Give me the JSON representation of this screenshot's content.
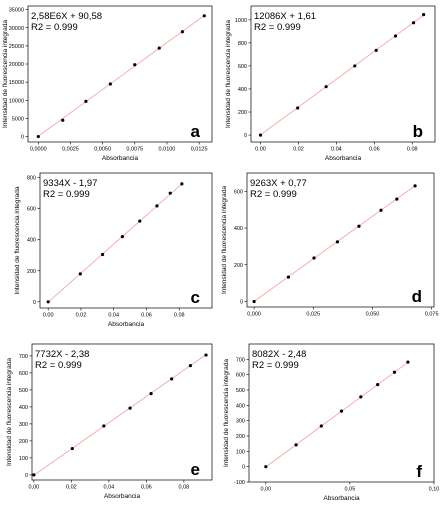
{
  "chart_data": [
    {
      "type": "scatter",
      "panel": "a",
      "equation": "2,58E6X + 90,58",
      "r2": "R2 = 0.999",
      "xlabel": "Absorbancia",
      "ylabel": "Intensidad de fluorescencia integrada",
      "xlim": [
        -0.0008,
        0.0135
      ],
      "ylim": [
        -1500,
        36000
      ],
      "xticks": [
        0.0,
        0.0025,
        0.005,
        0.0075,
        0.01,
        0.0125
      ],
      "xtick_labels": [
        "0,0000",
        "0,0025",
        "0,0050",
        "0,0075",
        "0,0100",
        "0,0125"
      ],
      "yticks": [
        0,
        5000,
        10000,
        15000,
        20000,
        25000,
        30000,
        35000
      ],
      "ytick_labels": [
        "0",
        "5000",
        "10000",
        "15000",
        "20000",
        "25000",
        "30000",
        "35000"
      ],
      "points": {
        "x": [
          0.0,
          0.0019,
          0.0037,
          0.0056,
          0.0075,
          0.0094,
          0.0112,
          0.0129
        ],
        "y": [
          0,
          4500,
          9700,
          14500,
          19800,
          24400,
          28900,
          33300
        ]
      },
      "fit": {
        "x": [
          0.0,
          0.0129
        ],
        "y": [
          90.58,
          33372.58
        ]
      }
    },
    {
      "type": "scatter",
      "panel": "b",
      "equation": "12086X + 1,61",
      "r2": "R2 = 0.999",
      "xlabel": "Absorbancia",
      "ylabel": "Intensidad de fluorescencia integrada",
      "xlim": [
        -0.005,
        0.092
      ],
      "ylim": [
        -60,
        1120
      ],
      "xticks": [
        0.0,
        0.02,
        0.04,
        0.06,
        0.08
      ],
      "xtick_labels": [
        "0.00",
        "0.02",
        "0.04",
        "0.06",
        "0.08"
      ],
      "yticks": [
        0,
        200,
        400,
        600,
        800,
        1000
      ],
      "ytick_labels": [
        "0",
        "200",
        "400",
        "600",
        "800",
        "1000"
      ],
      "points": {
        "x": [
          0.0,
          0.0196,
          0.0346,
          0.0497,
          0.061,
          0.0712,
          0.0807,
          0.086
        ],
        "y": [
          0,
          235,
          420,
          600,
          735,
          860,
          975,
          1045
        ]
      },
      "fit": {
        "x": [
          0.0,
          0.086
        ],
        "y": [
          1.61,
          1041.0
        ]
      }
    },
    {
      "type": "scatter",
      "panel": "c",
      "equation": "9334X - 1,97",
      "r2": "R2 = 0.999",
      "xlabel": "Absorbancia",
      "ylabel": "Intensidad de fluorescencia integrada",
      "xlim": [
        -0.005,
        0.1
      ],
      "ylim": [
        -40,
        830
      ],
      "xticks": [
        0.0,
        0.02,
        0.04,
        0.06,
        0.08
      ],
      "xtick_labels": [
        "0.00",
        "0.02",
        "0.04",
        "0.06",
        "0.08"
      ],
      "yticks": [
        0,
        200,
        400,
        600,
        800
      ],
      "ytick_labels": [
        "0",
        "200",
        "400",
        "600",
        "800"
      ],
      "points": {
        "x": [
          0.0,
          0.0196,
          0.0332,
          0.0453,
          0.0559,
          0.0664,
          0.0745,
          0.0816
        ],
        "y": [
          0,
          180,
          305,
          420,
          520,
          618,
          700,
          760
        ]
      },
      "fit": {
        "x": [
          0.0,
          0.0816
        ],
        "y": [
          -1.97,
          759.7
        ]
      }
    },
    {
      "type": "scatter",
      "panel": "d",
      "equation": "9263X + 0,77",
      "r2": "R2 = 0.999",
      "xlabel": "",
      "ylabel": "Intensidad de fluorescencia integrada",
      "xlim": [
        -0.003,
        0.076
      ],
      "ylim": [
        -30,
        700
      ],
      "xticks": [
        0.0,
        0.025,
        0.05,
        0.075
      ],
      "xtick_labels": [
        "0,000",
        "0,025",
        "0,050",
        "0,075"
      ],
      "yticks": [
        0,
        200,
        400,
        600
      ],
      "ytick_labels": [
        "0",
        "200",
        "400",
        "600"
      ],
      "points": {
        "x": [
          0.0,
          0.0145,
          0.0253,
          0.0352,
          0.0443,
          0.0536,
          0.0603,
          0.068
        ],
        "y": [
          0,
          133,
          237,
          325,
          410,
          497,
          558,
          630
        ]
      },
      "fit": {
        "x": [
          0.0,
          0.068
        ],
        "y": [
          0.77,
          630.65
        ]
      }
    },
    {
      "type": "scatter",
      "panel": "e",
      "equation": "7732X - 2,38",
      "r2": "R2 = 0.999",
      "xlabel": "Absorbancia",
      "ylabel": "Intensidad de fluorescencia integrada",
      "xlim": [
        -0.001,
        0.095
      ],
      "ylim": [
        -30,
        770
      ],
      "xticks": [
        0.0,
        0.02,
        0.04,
        0.06,
        0.08
      ],
      "xtick_labels": [
        "0,00",
        "0,02",
        "0,04",
        "0,06",
        "0,08"
      ],
      "yticks": [
        0,
        100,
        200,
        300,
        400,
        500,
        600,
        700
      ],
      "ytick_labels": [
        "0",
        "100",
        "200",
        "300",
        "400",
        "500",
        "600",
        "700"
      ],
      "points": {
        "x": [
          0.0,
          0.0205,
          0.0373,
          0.0513,
          0.0625,
          0.0735,
          0.0835,
          0.0918
        ],
        "y": [
          0,
          155,
          288,
          393,
          478,
          565,
          643,
          705
        ]
      },
      "fit": {
        "x": [
          0.0,
          0.0918
        ],
        "y": [
          -2.38,
          707.4
        ]
      }
    },
    {
      "type": "scatter",
      "panel": "f",
      "equation": "8082X - 2,48",
      "r2": "R2 = 0.999",
      "xlabel": "Absorbancia",
      "ylabel": "Intensidad de fluorescencia integrada",
      "xlim": [
        -0.01,
        0.1
      ],
      "ylim": [
        -100,
        800
      ],
      "xticks": [
        0.0,
        0.05,
        0.1
      ],
      "xtick_labels": [
        "0,00",
        "0,05",
        "0,10"
      ],
      "yticks": [
        -100,
        0,
        100,
        200,
        300,
        400,
        500,
        600,
        700
      ],
      "ytick_labels": [
        "-100",
        "0",
        "100",
        "200",
        "300",
        "400",
        "500",
        "600",
        "700"
      ],
      "points": {
        "x": [
          0.0,
          0.018,
          0.033,
          0.045,
          0.0565,
          0.0665,
          0.0765,
          0.0845
        ],
        "y": [
          0,
          142,
          265,
          362,
          455,
          535,
          616,
          682
        ]
      },
      "fit": {
        "x": [
          0.0,
          0.0845
        ],
        "y": [
          -2.48,
          680.5
        ]
      }
    }
  ],
  "style": {
    "fit_color": "#f4a7a7",
    "point_color": "#000000",
    "axis_color": "#000000"
  }
}
